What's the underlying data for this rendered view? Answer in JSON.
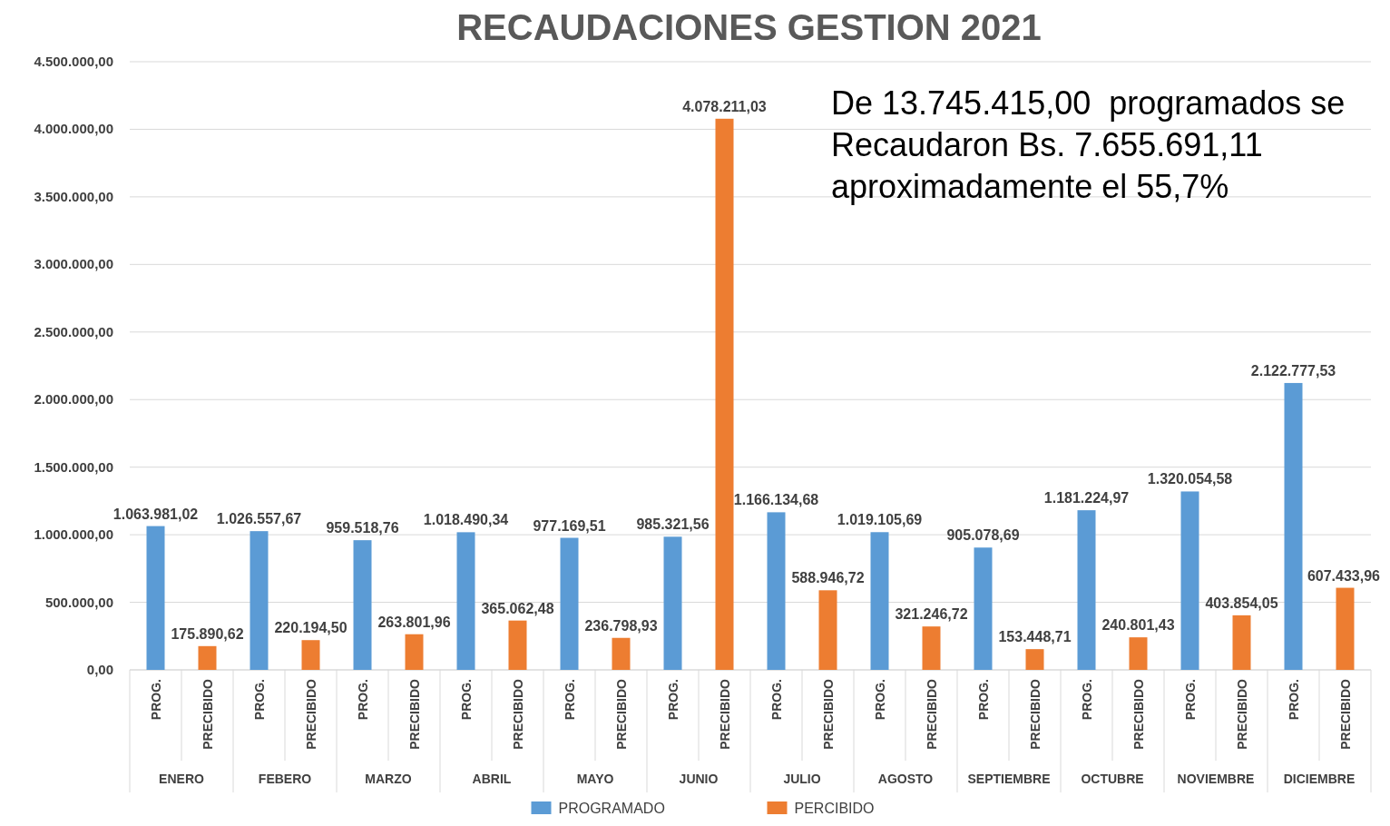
{
  "chart_data": {
    "type": "bar",
    "title": "RECAUDACIONES GESTION 2021",
    "categories": [
      "PROG.",
      "PRECIBIDO",
      "PROG.",
      "PRECIBIDO",
      "PROG.",
      "PRECIBIDO",
      "PROG.",
      "PRECIBIDO",
      "PROG.",
      "PRECIBIDO",
      "PROG.",
      "PRECIBIDO",
      "PROG.",
      "PRECIBIDO",
      "PROG.",
      "PRECIBIDO",
      "PROG.",
      "PRECIBIDO",
      "PROG.",
      "PRECIBIDO",
      "PROG.",
      "PRECIBIDO",
      "PROG.",
      "PRECIBIDO"
    ],
    "series": [
      {
        "name": "PROGRAMADO",
        "color": "#5b9bd5",
        "values": [
          1063981.02,
          null,
          1026557.67,
          null,
          959518.76,
          null,
          1018490.34,
          null,
          977169.51,
          null,
          985321.56,
          null,
          1166134.68,
          null,
          1019105.69,
          null,
          905078.69,
          null,
          1181224.97,
          null,
          1320054.58,
          null,
          2122777.53,
          null
        ],
        "value_labels": [
          "1.063.981,02",
          null,
          "1.026.557,67",
          null,
          "959.518,76",
          null,
          "1.018.490,34",
          null,
          "977.169,51",
          null,
          "985.321,56",
          null,
          "1.166.134,68",
          null,
          "1.019.105,69",
          null,
          "905.078,69",
          null,
          "1.181.224,97",
          null,
          "1.320.054,58",
          null,
          "2.122.777,53",
          null
        ]
      },
      {
        "name": "PERCIBIDO",
        "color": "#ed7d31",
        "values": [
          null,
          175890.62,
          null,
          220194.5,
          null,
          263801.96,
          null,
          365062.48,
          null,
          236798.93,
          null,
          4078211.03,
          null,
          588946.72,
          null,
          321246.72,
          null,
          153448.71,
          null,
          240801.43,
          null,
          403854.05,
          null,
          607433.96
        ],
        "value_labels": [
          null,
          "175.890,62",
          null,
          "220.194,50",
          null,
          "263.801,96",
          null,
          "365.062,48",
          null,
          "236.798,93",
          null,
          "4.078.211,03",
          null,
          "588.946,72",
          null,
          "321.246,72",
          null,
          "153.448,71",
          null,
          "240.801,43",
          null,
          "403.854,05",
          null,
          "607.433,96"
        ]
      }
    ],
    "ylim": [
      0,
      4500000
    ],
    "yticks": [
      {
        "value": 0,
        "label": "0,00"
      },
      {
        "value": 500000,
        "label": "500.000,00"
      },
      {
        "value": 1000000,
        "label": "1.000.000,00"
      },
      {
        "value": 1500000,
        "label": "1.500.000,00"
      },
      {
        "value": 2000000,
        "label": "2.000.000,00"
      },
      {
        "value": 2500000,
        "label": "2.500.000,00"
      },
      {
        "value": 3000000,
        "label": "3.000.000,00"
      },
      {
        "value": 3500000,
        "label": "3.500.000,00"
      },
      {
        "value": 4000000,
        "label": "4.000.000,00"
      },
      {
        "value": 4500000,
        "label": "4.500.000,00"
      }
    ],
    "grid": "y",
    "legend": "bottom",
    "annotations": [
      "De 13.745.415,00  programados se Recaudaron Bs. 7.655.691,11 aproximadamente el 55,7%",
      "ENERO",
      "FEBERO",
      "MARZO",
      "ABRIL",
      "MAYO",
      "JUNIO",
      "JULIO",
      "AGOSTO",
      "SEPTIEMBRE",
      "OCTUBRE",
      "NOVIEMBRE",
      "DICIEMBRE"
    ]
  }
}
